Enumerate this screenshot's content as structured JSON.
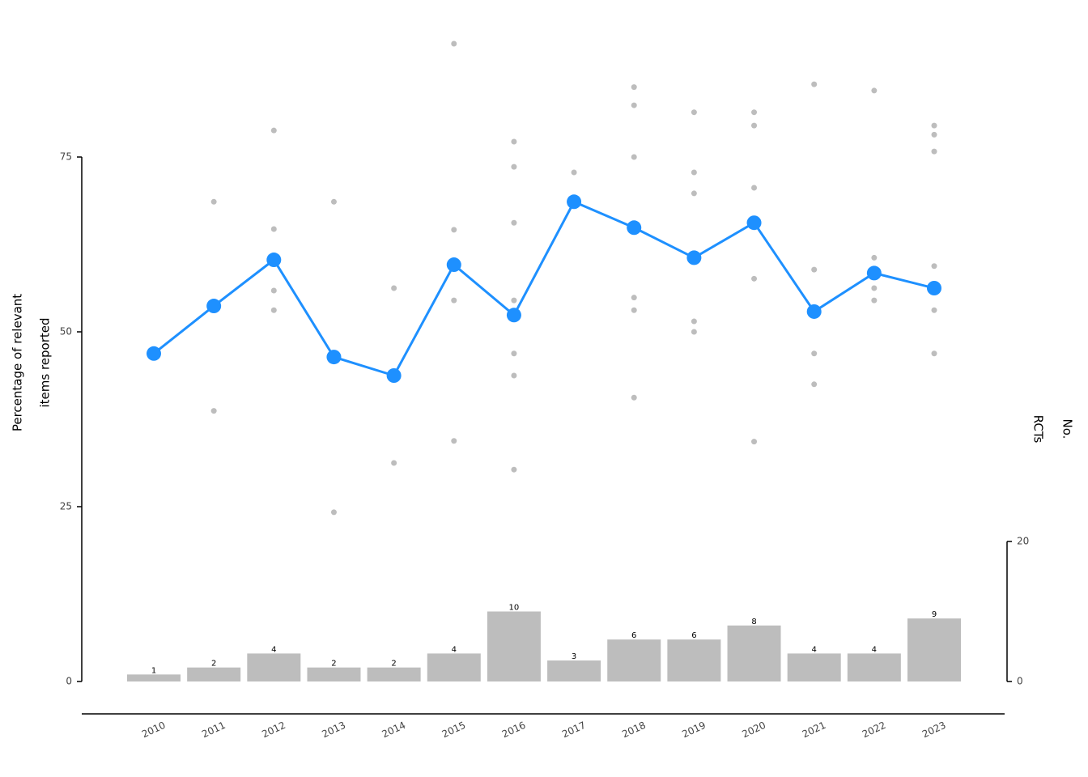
{
  "chart_data": {
    "type": "line",
    "categories": [
      "2010",
      "2011",
      "2012",
      "2013",
      "2014",
      "2015",
      "2016",
      "2017",
      "2018",
      "2019",
      "2020",
      "2021",
      "2022",
      "2023"
    ],
    "series": [
      {
        "color": "#1e90ff",
        "values": [
          46.9,
          53.7,
          60.3,
          46.4,
          43.75,
          59.6,
          52.4,
          68.6,
          64.9,
          60.6,
          65.6,
          52.9,
          58.4,
          56.25
        ]
      }
    ],
    "study_color": "#bdbdbd",
    "study_values": [
      [
        46.9
      ],
      [
        68.6,
        38.7
      ],
      [
        78.8,
        64.7,
        55.9,
        53.1
      ],
      [
        68.6,
        24.2
      ],
      [
        56.25,
        31.25
      ],
      [
        91.2,
        64.6,
        54.5,
        34.4
      ],
      [
        77.2,
        73.6,
        65.6,
        54.5,
        46.9,
        43.75,
        30.3
      ],
      [
        72.8
      ],
      [
        85.0,
        82.4,
        75.0,
        54.9,
        53.1,
        40.6
      ],
      [
        81.4,
        72.8,
        69.8,
        51.5,
        50.0
      ],
      [
        81.4,
        79.5,
        70.6,
        57.6,
        34.3
      ],
      [
        85.4,
        58.9,
        46.9,
        42.5
      ],
      [
        84.5,
        60.6,
        56.25,
        54.5
      ],
      [
        79.5,
        78.2,
        75.8,
        59.4,
        53.1,
        46.9
      ]
    ],
    "bars": {
      "axis": "y2",
      "color": "#bdbdbd",
      "values": [
        1,
        2,
        4,
        2,
        2,
        4,
        10,
        3,
        6,
        6,
        8,
        4,
        4,
        9
      ]
    },
    "ylim": [
      0,
      75
    ],
    "yticks": [
      0,
      25,
      50,
      75
    ],
    "y2lim": [
      0,
      20
    ],
    "y2ticks": [
      0,
      20
    ],
    "ylabel": [
      "Percentage of relevant",
      "items reported"
    ],
    "y2label": [
      "No.",
      "RCTs"
    ]
  }
}
